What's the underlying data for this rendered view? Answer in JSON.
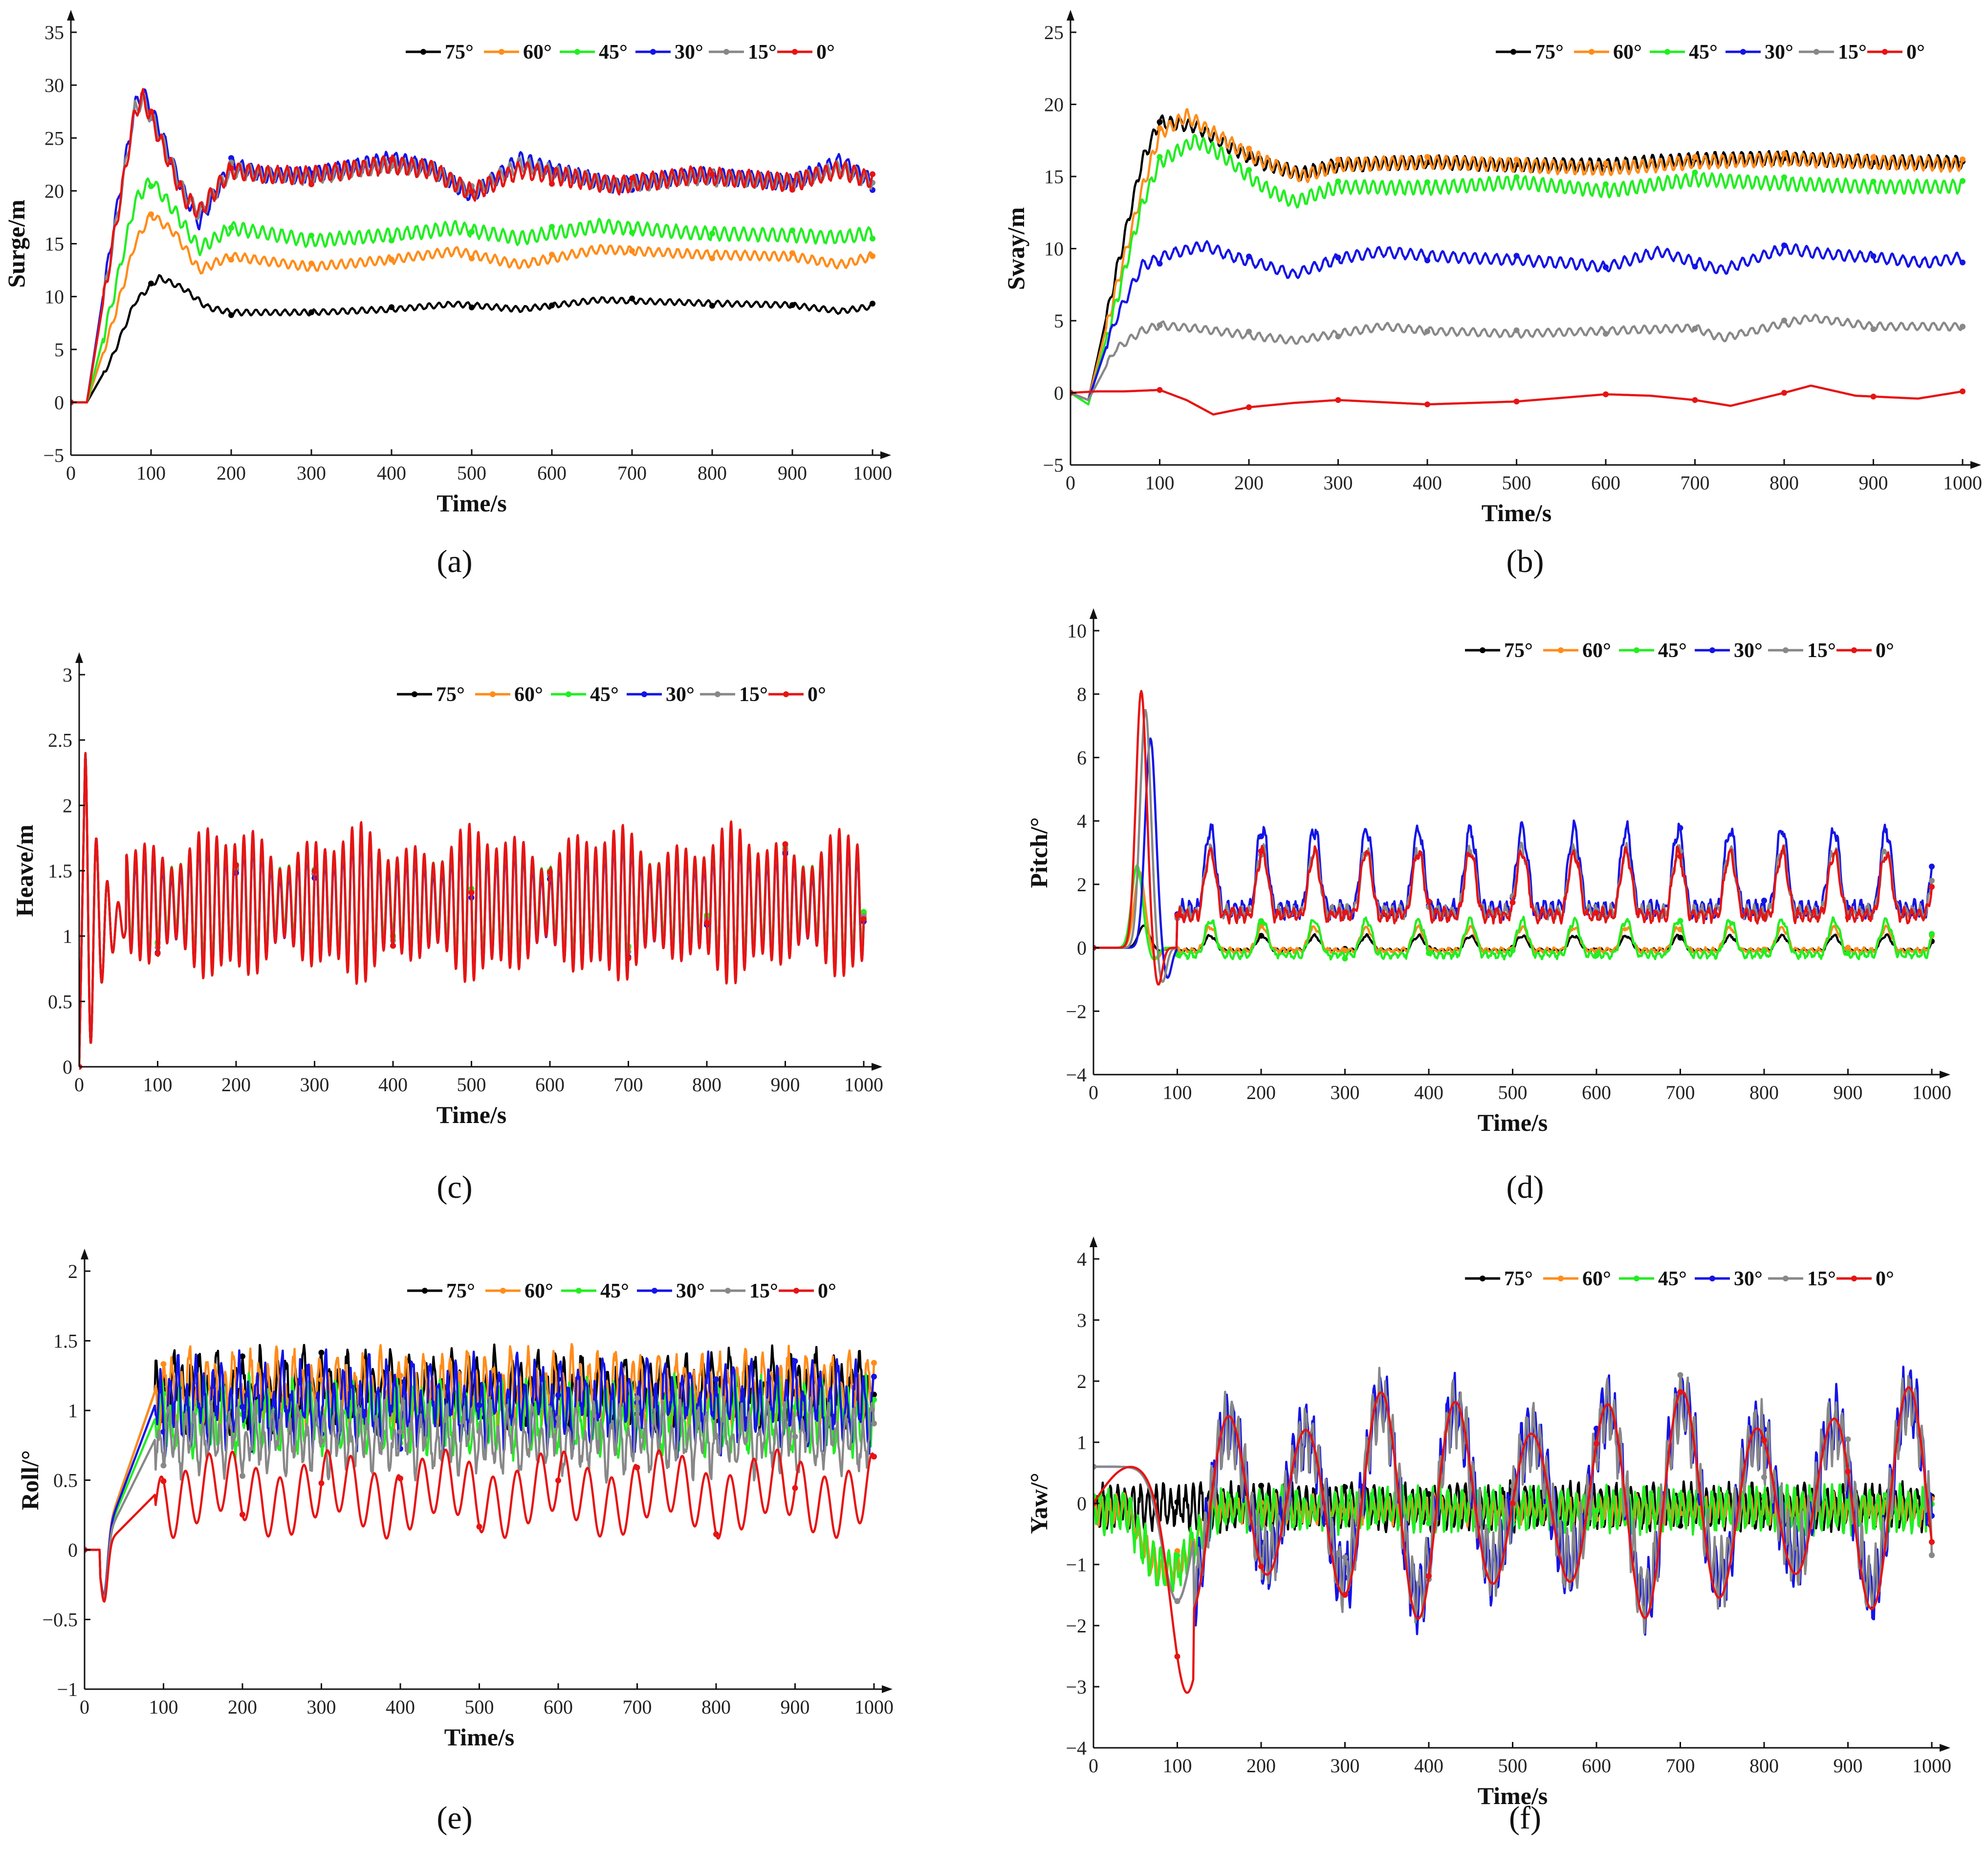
{
  "colors": {
    "75°": "#000000",
    "60°": "#FF8C1A",
    "45°": "#22EE22",
    "30°": "#1414E6",
    "15°": "#888888",
    "0°": "#E61414"
  },
  "legend_entries": [
    "75°",
    "60°",
    "45°",
    "30°",
    "15°",
    "0°"
  ],
  "chart_data": [
    {
      "panel": "(a)",
      "type": "line",
      "xlabel": "Time/s",
      "ylabel": "Surge/m",
      "xlim": [
        0,
        1000
      ],
      "ylim": [
        -5,
        35
      ],
      "xticks": [
        0,
        100,
        200,
        300,
        400,
        500,
        600,
        700,
        800,
        900,
        1000
      ],
      "yticks": [
        -5,
        0,
        5,
        10,
        15,
        20,
        25,
        30,
        35
      ],
      "legend": "top-right",
      "series": [
        {
          "name": "75°",
          "t": [
            0,
            20,
            50,
            80,
            110,
            140,
            170,
            200,
            300,
            400,
            480,
            560,
            660,
            780,
            900,
            960,
            1000
          ],
          "v": [
            0,
            0,
            4,
            9.5,
            11.8,
            10.8,
            9,
            8.5,
            8.5,
            8.8,
            9.3,
            8.8,
            9.7,
            9.4,
            9.2,
            8.6,
            9.1
          ],
          "ripple": 0.25,
          "period": 12
        },
        {
          "name": "60°",
          "t": [
            0,
            20,
            50,
            80,
            100,
            130,
            160,
            200,
            300,
            400,
            480,
            560,
            660,
            780,
            900,
            960,
            1000
          ],
          "v": [
            0,
            0,
            7,
            15,
            17.8,
            16,
            12.5,
            13.8,
            12.8,
            13.5,
            14.3,
            13,
            14.5,
            14,
            13.8,
            13,
            13.8
          ],
          "ripple": 0.4,
          "period": 12
        },
        {
          "name": "45°",
          "t": [
            0,
            20,
            50,
            80,
            100,
            130,
            160,
            200,
            300,
            400,
            480,
            560,
            660,
            780,
            900,
            960,
            1000
          ],
          "v": [
            0,
            0,
            9,
            19,
            21,
            18,
            14.5,
            16.5,
            15.3,
            15.8,
            16.5,
            15.5,
            16.7,
            16,
            15.8,
            15.6,
            16
          ],
          "ripple": 0.6,
          "period": 12
        },
        {
          "name": "30°",
          "t": [
            0,
            20,
            50,
            80,
            90,
            110,
            140,
            160,
            200,
            240,
            300,
            400,
            450,
            500,
            560,
            600,
            680,
            780,
            900,
            960,
            1000
          ],
          "v": [
            0,
            0,
            15,
            28,
            29.3,
            26,
            20,
            17,
            22.5,
            21.5,
            21.5,
            23,
            22.2,
            19.5,
            23,
            22,
            20.5,
            21.5,
            20.8,
            22.8,
            20.8
          ],
          "ripple": 0.7,
          "period": 12
        },
        {
          "name": "15°",
          "t": [
            0,
            20,
            50,
            80,
            90,
            110,
            140,
            160,
            200,
            240,
            300,
            400,
            450,
            500,
            560,
            600,
            680,
            780,
            900,
            960,
            1000
          ],
          "v": [
            0,
            0,
            14,
            27.8,
            28.5,
            25.5,
            20,
            17.8,
            22,
            21.5,
            21.3,
            22.5,
            22,
            19.8,
            22.5,
            21.8,
            20.5,
            21.3,
            20.8,
            22.2,
            20.8
          ],
          "ripple": 0.7,
          "period": 12
        },
        {
          "name": "0°",
          "t": [
            0,
            20,
            50,
            80,
            90,
            110,
            140,
            160,
            200,
            240,
            300,
            400,
            450,
            500,
            560,
            600,
            680,
            780,
            900,
            960,
            1000
          ],
          "v": [
            0,
            0,
            14,
            27.5,
            28.8,
            25,
            19.5,
            18,
            22,
            21.5,
            21.5,
            22.5,
            22,
            19.8,
            22,
            21.5,
            20.5,
            21.5,
            20.8,
            22,
            21
          ],
          "ripple": 0.8,
          "period": 12
        }
      ]
    },
    {
      "panel": "(b)",
      "type": "line",
      "xlabel": "Time/s",
      "ylabel": "Sway/m",
      "xlim": [
        0,
        1000
      ],
      "ylim": [
        -5,
        25
      ],
      "xticks": [
        0,
        100,
        200,
        300,
        400,
        500,
        600,
        700,
        800,
        900,
        1000
      ],
      "yticks": [
        -5,
        0,
        5,
        10,
        15,
        20,
        25
      ],
      "legend": "top-right",
      "series": [
        {
          "name": "75°",
          "t": [
            0,
            20,
            50,
            80,
            100,
            140,
            180,
            220,
            260,
            300,
            400,
            500,
            600,
            700,
            800,
            900,
            1000
          ],
          "v": [
            0,
            -0.5,
            8,
            16,
            18.8,
            18.5,
            17,
            15.8,
            15.2,
            15.8,
            16,
            15.8,
            15.8,
            16.2,
            16.3,
            16,
            16
          ],
          "ripple": 0.45,
          "period": 10
        },
        {
          "name": "60°",
          "t": [
            0,
            20,
            50,
            80,
            100,
            130,
            160,
            200,
            260,
            300,
            400,
            500,
            600,
            700,
            800,
            900,
            1000
          ],
          "v": [
            0,
            -0.5,
            7,
            14,
            18,
            19.2,
            18,
            16.5,
            15,
            15.8,
            16,
            15.8,
            15.5,
            16,
            16.2,
            16,
            15.8
          ],
          "ripple": 0.45,
          "period": 10
        },
        {
          "name": "45°",
          "t": [
            0,
            20,
            50,
            80,
            100,
            140,
            170,
            210,
            250,
            300,
            400,
            500,
            600,
            700,
            800,
            900,
            1000
          ],
          "v": [
            0,
            -0.8,
            6,
            13,
            16,
            17.5,
            16.5,
            14.5,
            13.2,
            14.3,
            14.2,
            14.6,
            14,
            14.8,
            14.5,
            14.3,
            14.3
          ],
          "ripple": 0.45,
          "period": 10
        },
        {
          "name": "30°",
          "t": [
            0,
            20,
            50,
            80,
            110,
            150,
            180,
            220,
            250,
            300,
            350,
            400,
            500,
            560,
            600,
            660,
            730,
            800,
            850,
            900,
            960,
            1000
          ],
          "v": [
            0,
            -0.5,
            5,
            8.8,
            9.6,
            10.2,
            9.5,
            8.8,
            8.2,
            9.3,
            9.8,
            9.5,
            9.2,
            9,
            8.7,
            9.8,
            8.5,
            10,
            9.6,
            9.4,
            9,
            9.4
          ],
          "ripple": 0.35,
          "period": 12
        },
        {
          "name": "15°",
          "t": [
            0,
            20,
            50,
            80,
            100,
            150,
            200,
            250,
            300,
            350,
            400,
            500,
            600,
            700,
            730,
            800,
            830,
            900,
            1000
          ],
          "v": [
            0,
            -0.5,
            3,
            4.3,
            4.7,
            4.4,
            4,
            3.6,
            4.1,
            4.6,
            4.3,
            4.1,
            4.3,
            4.5,
            3.8,
            4.8,
            5.2,
            4.6,
            4.6
          ],
          "ripple": 0.25,
          "period": 12
        },
        {
          "name": "0°",
          "t": [
            0,
            30,
            60,
            100,
            130,
            160,
            200,
            250,
            300,
            400,
            500,
            600,
            650,
            700,
            740,
            800,
            830,
            880,
            950,
            1000
          ],
          "v": [
            0,
            0.1,
            0.1,
            0.2,
            -0.5,
            -1.5,
            -1,
            -0.7,
            -0.5,
            -0.8,
            -0.6,
            -0.1,
            -0.2,
            -0.5,
            -0.9,
            0,
            0.5,
            -0.2,
            -0.4,
            0.1
          ],
          "ripple": 0,
          "period": 12
        }
      ]
    },
    {
      "panel": "(c)",
      "type": "line",
      "xlabel": "Time/s",
      "ylabel": "Heave/m",
      "xlim": [
        0,
        1000
      ],
      "ylim": [
        0,
        3
      ],
      "xticks": [
        0,
        100,
        200,
        300,
        400,
        500,
        600,
        700,
        800,
        900,
        1000
      ],
      "yticks": [
        0,
        0.5,
        1,
        1.5,
        2,
        2.5,
        3
      ],
      "legend": "top-right",
      "series": [
        {
          "name": "75°",
          "mode": "heave",
          "offset": 0.02,
          "amp": 0.35
        },
        {
          "name": "60°",
          "mode": "heave",
          "offset": 0.02,
          "amp": 0.36
        },
        {
          "name": "45°",
          "mode": "heave",
          "offset": 0.04,
          "amp": 0.37
        },
        {
          "name": "30°",
          "mode": "heave",
          "offset": -0.03,
          "amp": 0.38
        },
        {
          "name": "15°",
          "mode": "heave",
          "offset": 0.01,
          "amp": 0.38
        },
        {
          "name": "0°",
          "mode": "heave",
          "offset": 0,
          "amp": 0.42
        }
      ]
    },
    {
      "panel": "(d)",
      "type": "line",
      "xlabel": "Time/s",
      "ylabel": "Pitch/°",
      "xlim": [
        0,
        1000
      ],
      "ylim": [
        -4,
        10
      ],
      "xticks": [
        0,
        100,
        200,
        300,
        400,
        500,
        600,
        700,
        800,
        900,
        1000
      ],
      "yticks": [
        -4,
        -2,
        0,
        2,
        4,
        6,
        8,
        10
      ],
      "legend": "top-right",
      "series": [
        {
          "name": "75°",
          "mode": "pitch",
          "base": 0.1,
          "amp": 0.25,
          "peak": 0.7,
          "peakT": 60
        },
        {
          "name": "60°",
          "mode": "pitch",
          "base": 0.2,
          "amp": 0.4,
          "peak": 2.4,
          "peakT": 55
        },
        {
          "name": "45°",
          "mode": "pitch",
          "base": 0.2,
          "amp": 0.6,
          "peak": 2.6,
          "peakT": 52
        },
        {
          "name": "30°",
          "mode": "pitch",
          "base": 2.2,
          "amp": 1.4,
          "peak": 6.6,
          "peakT": 68
        },
        {
          "name": "15°",
          "mode": "pitch",
          "base": 1.9,
          "amp": 1.1,
          "peak": 7.5,
          "peakT": 62
        },
        {
          "name": "0°",
          "mode": "pitch",
          "base": 1.8,
          "amp": 1.1,
          "peak": 8.1,
          "peakT": 57
        }
      ]
    },
    {
      "panel": "(e)",
      "type": "line",
      "xlabel": "Time/s",
      "ylabel": "Roll/°",
      "xlim": [
        0,
        1000
      ],
      "ylim": [
        -1,
        2
      ],
      "xticks": [
        0,
        100,
        200,
        300,
        400,
        500,
        600,
        700,
        800,
        900,
        1000
      ],
      "yticks": [
        -1,
        -0.5,
        0,
        0.5,
        1,
        1.5,
        2
      ],
      "legend": "top-right",
      "series": [
        {
          "name": "75°",
          "mode": "roll",
          "base": 1.15,
          "amp": 0.17
        },
        {
          "name": "60°",
          "mode": "roll",
          "base": 1.15,
          "amp": 0.17
        },
        {
          "name": "45°",
          "mode": "roll",
          "base": 0.95,
          "amp": 0.17
        },
        {
          "name": "30°",
          "mode": "roll",
          "base": 1.05,
          "amp": 0.2
        },
        {
          "name": "15°",
          "mode": "roll",
          "base": 0.8,
          "amp": 0.16
        },
        {
          "name": "0°",
          "mode": "roll0",
          "base": 0.4,
          "amp": 0.22
        }
      ]
    },
    {
      "panel": "(f)",
      "type": "line",
      "xlabel": "Time/s",
      "ylabel": "Yaw/°",
      "xlim": [
        0,
        1000
      ],
      "ylim": [
        -4,
        4
      ],
      "xticks": [
        0,
        100,
        200,
        300,
        400,
        500,
        600,
        700,
        800,
        900,
        1000
      ],
      "yticks": [
        -4,
        -3,
        -2,
        -1,
        0,
        1,
        2,
        3,
        4
      ],
      "legend": "top-right",
      "series": [
        {
          "name": "75°",
          "mode": "yawflat",
          "base": -0.05,
          "amp": 0.3
        },
        {
          "name": "60°",
          "mode": "yawflat",
          "base": -0.1,
          "amp": 0.2
        },
        {
          "name": "45°",
          "mode": "yawflat",
          "base": -0.1,
          "amp": 0.3
        },
        {
          "name": "30°",
          "mode": "yawbig",
          "base": 0.1,
          "amp": 1.7
        },
        {
          "name": "15°",
          "mode": "yawbig",
          "base": 0.1,
          "amp": 1.6
        },
        {
          "name": "0°",
          "mode": "yaw0",
          "base": 0,
          "amp": 1.9
        }
      ]
    }
  ],
  "panel_labels": [
    "(a)",
    "(b)",
    "(c)",
    "(d)",
    "(e)",
    "(f)"
  ]
}
